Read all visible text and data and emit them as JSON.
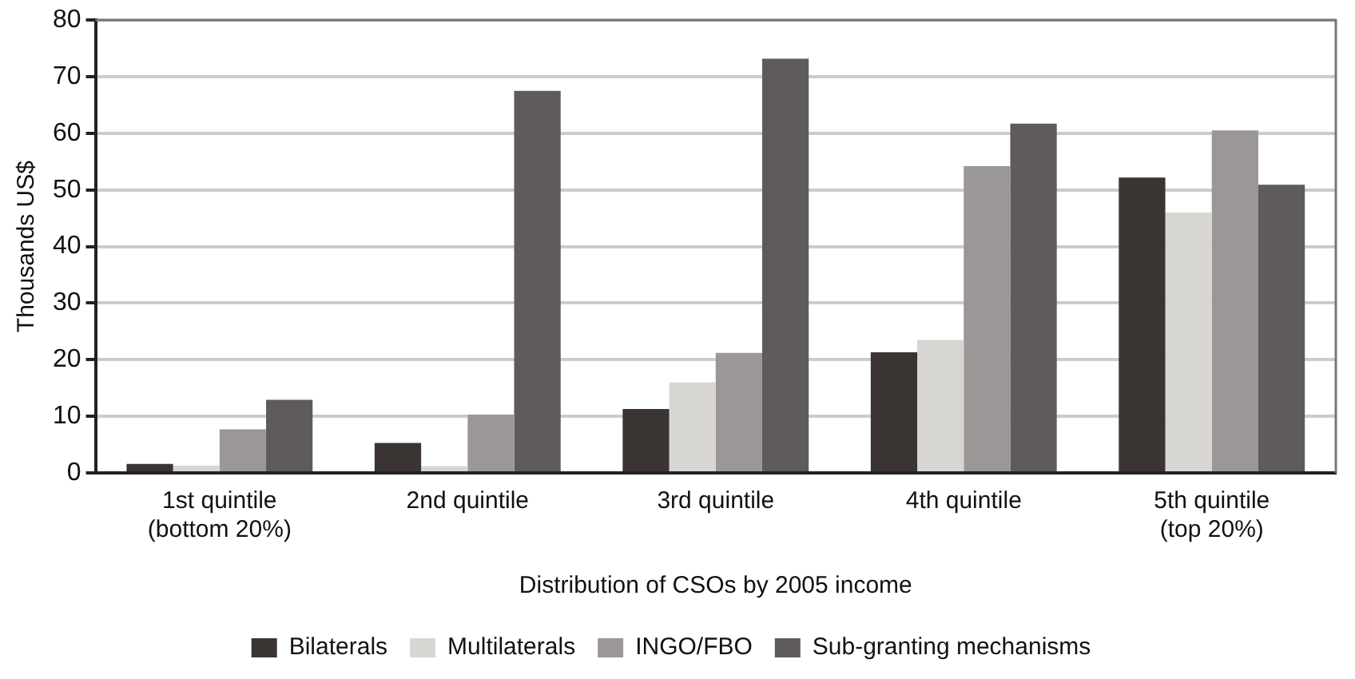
{
  "chart_data": {
    "type": "bar",
    "xlabel": "Distribution of CSOs by 2005 income",
    "ylabel": "Thousands US$",
    "categories": [
      [
        "1st quintile",
        "(bottom 20%)"
      ],
      [
        "2nd quintile"
      ],
      [
        "3rd quintile"
      ],
      [
        "4th quintile"
      ],
      [
        "5th quintile",
        "(top 20%)"
      ]
    ],
    "series": [
      {
        "name": "Bilaterals",
        "color": "#3a3533",
        "values": [
          1.6,
          5.3,
          11.3,
          21.3,
          52.2
        ]
      },
      {
        "name": "Multilaterals",
        "color": "#d8d6d2",
        "values": [
          1.3,
          1.2,
          16,
          23.5,
          46
        ]
      },
      {
        "name": "INGO/FBO",
        "color": "#9a9796",
        "values": [
          7.7,
          10.3,
          21.2,
          54.2,
          60.5
        ]
      },
      {
        "name": "Sub-granting mechanisms",
        "color": "#5e5b5a",
        "values": [
          12.9,
          67.5,
          73.2,
          61.7,
          50.9
        ]
      }
    ],
    "ylim": [
      0,
      80
    ],
    "yticks": [
      0,
      10,
      20,
      30,
      40,
      50,
      60,
      70,
      80
    ],
    "grid": "y",
    "legend": "bottom"
  }
}
